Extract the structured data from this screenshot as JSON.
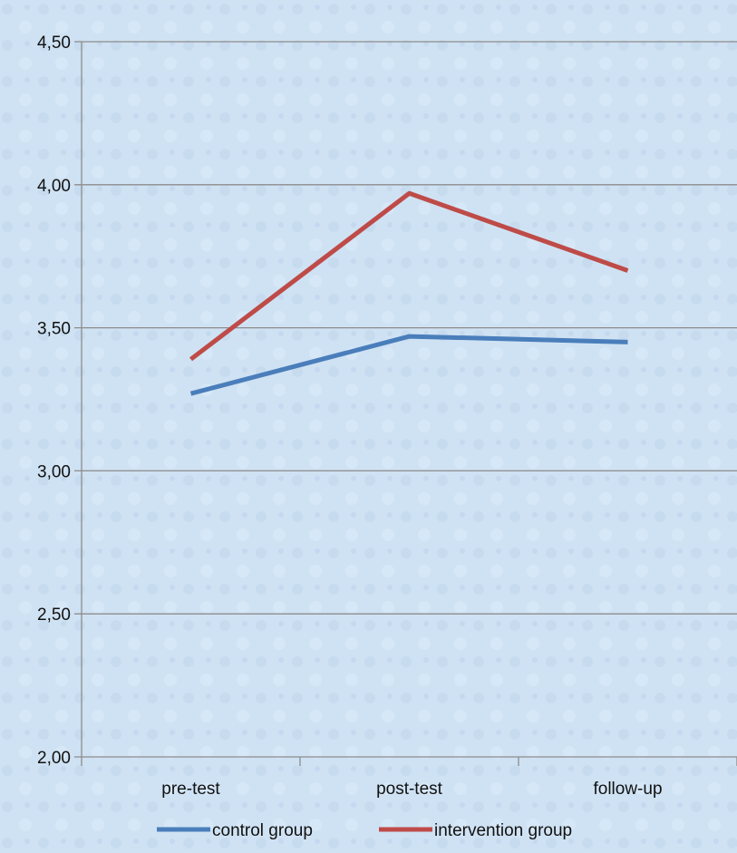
{
  "chart_data": {
    "type": "line",
    "categories": [
      "pre-test",
      "post-test",
      "follow-up"
    ],
    "series": [
      {
        "name": "control group",
        "values": [
          3.27,
          3.47,
          3.45
        ],
        "color": "#4a7ebb"
      },
      {
        "name": "intervention group",
        "values": [
          3.39,
          3.97,
          3.7
        ],
        "color": "#be4b48"
      }
    ],
    "ylim": [
      2.0,
      4.5
    ],
    "yticks": [
      "2,00",
      "2,50",
      "3,00",
      "3,50",
      "4,00",
      "4,50"
    ],
    "ytick_values": [
      2.0,
      2.5,
      3.0,
      3.5,
      4.0,
      4.5
    ],
    "grid": true,
    "legend_position": "bottom",
    "title": "",
    "xlabel": "",
    "ylabel": ""
  },
  "colors": {
    "background": "#cfe2f3",
    "gridline": "#8c8c8c"
  }
}
